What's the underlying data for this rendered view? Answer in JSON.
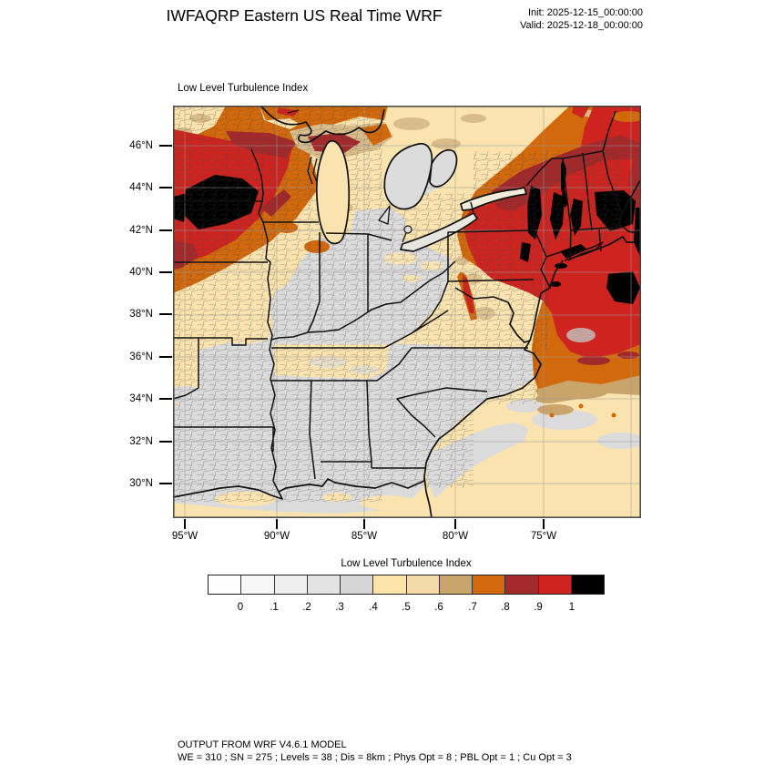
{
  "header": {
    "title": "IWFAQRP Eastern US Real Time WRF",
    "init_line": "Init: 2025-12-15_00:00:00",
    "valid_line": "Valid: 2025-12-18_00:00:00"
  },
  "map": {
    "panel_title": "Low Level Turbulence Index",
    "lat_ticks": [
      "46°N",
      "44°N",
      "42°N",
      "40°N",
      "38°N",
      "36°N",
      "34°N",
      "32°N",
      "30°N"
    ],
    "lon_ticks": [
      "95°W",
      "90°W",
      "85°W",
      "80°W",
      "75°W"
    ]
  },
  "legend": {
    "title": "Low Level Turbulence Index",
    "tick_labels": [
      "0",
      ".1",
      ".2",
      ".3",
      ".4",
      ".5",
      ".6",
      ".7",
      ".8",
      ".9",
      "1"
    ],
    "colors": [
      "#FEFEFE",
      "#F7F7F7",
      "#EFEFEF",
      "#E3E3E3",
      "#D5D5D5",
      "#FCE3A9",
      "#F4DAA6",
      "#C9A46B",
      "#D2690C",
      "#A3292B",
      "#CD2420",
      "#000000"
    ]
  },
  "footer": {
    "line1": "OUTPUT FROM WRF V4.6.1 MODEL",
    "line2": "WE = 310 ; SN = 275 ; Levels = 38 ; Dis = 8km ; Phys Opt = 8 ; PBL Opt = 1 ; Cu Opt = 3"
  },
  "chart_data": {
    "type": "heatmap",
    "title": "Low Level Turbulence Index",
    "colorbar_levels": [
      0,
      0.1,
      0.2,
      0.3,
      0.4,
      0.5,
      0.6,
      0.7,
      0.8,
      0.9,
      1
    ],
    "colorbar_colors": [
      "#FEFEFE",
      "#F7F7F7",
      "#EFEFEF",
      "#E3E3E3",
      "#D5D5D5",
      "#FCE3A9",
      "#F4DAA6",
      "#C9A46B",
      "#D2690C",
      "#A3292B",
      "#CD2420",
      "#000000"
    ],
    "lat_axis_ticks_N": [
      46,
      44,
      42,
      40,
      38,
      36,
      34,
      32,
      30
    ],
    "lon_axis_ticks_W": [
      95,
      90,
      85,
      80,
      75
    ],
    "high_turbulence_regions": [
      "Upper Midwest (MN/WI/IA, index > 1 core)",
      "Northeast US and western Atlantic (index 0.9-1 with > 1 patches)"
    ],
    "low_turbulence_regions": [
      "Ohio Valley and Southeast interior (index 0.2-0.4)"
    ]
  }
}
